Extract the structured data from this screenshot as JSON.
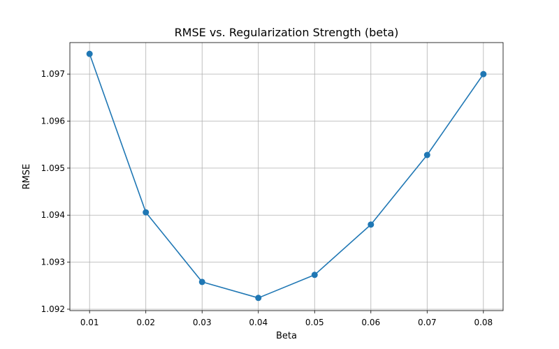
{
  "chart_data": {
    "type": "line",
    "title": "RMSE vs. Regularization Strength (beta)",
    "xlabel": "Beta",
    "ylabel": "RMSE",
    "x": [
      0.01,
      0.02,
      0.03,
      0.04,
      0.05,
      0.06,
      0.07,
      0.08
    ],
    "x_tick_labels": [
      "0.01",
      "0.02",
      "0.03",
      "0.04",
      "0.05",
      "0.06",
      "0.07",
      "0.08"
    ],
    "xlim": [
      0.0065,
      0.0835
    ],
    "ylim": [
      1.09197,
      1.09767
    ],
    "y_ticks": [
      1.092,
      1.093,
      1.094,
      1.095,
      1.096,
      1.097
    ],
    "y_tick_labels": [
      "1.092",
      "1.093",
      "1.094",
      "1.095",
      "1.096",
      "1.097"
    ],
    "grid": true,
    "series": [
      {
        "color": "#1f77b4",
        "marker": "circle",
        "values": [
          1.09743,
          1.09406,
          1.09258,
          1.09224,
          1.09273,
          1.0938,
          1.09528,
          1.097
        ]
      }
    ]
  }
}
